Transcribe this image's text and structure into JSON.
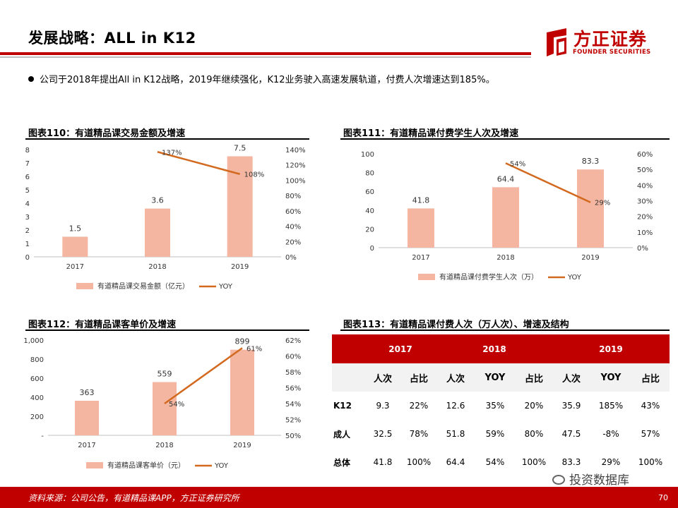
{
  "header": {
    "title": "发展战略：ALL in K12",
    "logo_name": "方正证券",
    "logo_en": "FOUNDER SECURITIES"
  },
  "bullet": "公司于2018年提出All in K12战略，2019年继续强化，K12业务驶入高速发展轨道，付费人次增速达到185%。",
  "colors": {
    "accent": "#c00000",
    "bar": "#f4b6a0",
    "line": "#d2691e"
  },
  "chart_data": [
    {
      "type": "bar",
      "title": "图表110：有道精品课交易金额及增速",
      "categories": [
        "2017",
        "2018",
        "2019"
      ],
      "series": [
        {
          "name": "有道精品课交易金额（亿元）",
          "type": "bar",
          "values": [
            1.5,
            3.6,
            7.5
          ],
          "labels": [
            "1.5",
            "3.6",
            "7.5"
          ]
        },
        {
          "name": "YOY",
          "type": "line",
          "axis": "right",
          "values": [
            null,
            137,
            108
          ],
          "labels": [
            "",
            "137%",
            "108%"
          ]
        }
      ],
      "y_left": {
        "min": 0,
        "max": 8,
        "ticks": [
          "0",
          "1",
          "2",
          "3",
          "4",
          "5",
          "6",
          "7",
          "8"
        ]
      },
      "y_right": {
        "min": 0,
        "max": 140,
        "ticks": [
          "0%",
          "20%",
          "40%",
          "60%",
          "80%",
          "100%",
          "120%",
          "140%"
        ]
      },
      "legend": "bottom"
    },
    {
      "type": "bar",
      "title": "图表111：有道精品课付费学生人次及增速",
      "categories": [
        "2017",
        "2018",
        "2019"
      ],
      "series": [
        {
          "name": "有道精品课付费学生人次（万）",
          "type": "bar",
          "values": [
            41.8,
            64.4,
            83.3
          ],
          "labels": [
            "41.8",
            "64.4",
            "83.3"
          ]
        },
        {
          "name": "YOY",
          "type": "line",
          "axis": "right",
          "values": [
            null,
            54,
            29
          ],
          "labels": [
            "",
            "54%",
            "29%"
          ]
        }
      ],
      "y_left": {
        "min": 0,
        "max": 100,
        "ticks": [
          "0",
          "20",
          "40",
          "60",
          "80",
          "100"
        ]
      },
      "y_right": {
        "min": 0,
        "max": 60,
        "ticks": [
          "0%",
          "10%",
          "20%",
          "30%",
          "40%",
          "50%",
          "60%"
        ]
      },
      "legend": "bottom"
    },
    {
      "type": "bar",
      "title": "图表112：有道精品课客单价及增速",
      "categories": [
        "2017",
        "2018",
        "2019"
      ],
      "series": [
        {
          "name": "有道精品课客单价（元）",
          "type": "bar",
          "values": [
            363,
            559,
            899
          ],
          "labels": [
            "363",
            "559",
            "899"
          ]
        },
        {
          "name": "YOY",
          "type": "line",
          "axis": "right",
          "values": [
            null,
            54,
            61
          ],
          "labels": [
            "",
            "54%",
            "61%"
          ]
        }
      ],
      "y_left": {
        "min": 0,
        "max": 1000,
        "ticks": [
          "-",
          "200",
          "400",
          "600",
          "800",
          "1,000"
        ]
      },
      "y_right": {
        "min": 50,
        "max": 62,
        "ticks": [
          "50%",
          "52%",
          "54%",
          "56%",
          "58%",
          "60%",
          "62%"
        ]
      },
      "legend": "bottom"
    },
    {
      "type": "table",
      "title": "图表113：有道精品课付费人次（万人次）、增速及结构",
      "years": [
        "2017",
        "2018",
        "2019"
      ],
      "columns": [
        "",
        "人次",
        "占比",
        "人次",
        "YOY",
        "占比",
        "人次",
        "YOY",
        "占比"
      ],
      "rows": [
        [
          "K12",
          "9.3",
          "22%",
          "12.6",
          "35%",
          "20%",
          "35.9",
          "185%",
          "43%"
        ],
        [
          "成人",
          "32.5",
          "78%",
          "51.8",
          "59%",
          "80%",
          "47.5",
          "-8%",
          "57%"
        ],
        [
          "总体",
          "41.8",
          "100%",
          "64.4",
          "54%",
          "100%",
          "83.3",
          "29%",
          "100%"
        ]
      ]
    }
  ],
  "footer": {
    "source": "资料来源：公司公告，有道精品课APP，方正证券研究所",
    "watermark": "投资数据库",
    "page": "70"
  }
}
